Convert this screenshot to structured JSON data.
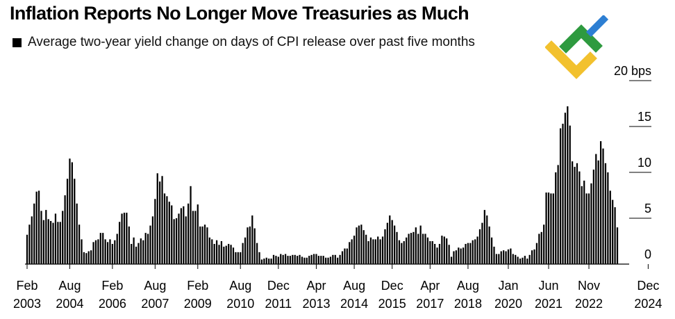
{
  "title": "Inflation Reports No Longer Move Treasuries as Much",
  "legend": {
    "label": "Average two-year yield change on days of CPI release over past five months"
  },
  "logo": {
    "name": "brand-logo",
    "colors": {
      "green": "#2e9a3f",
      "blue": "#2d7fd3",
      "yellow": "#f2c12e"
    }
  },
  "chart_data": {
    "type": "bar",
    "title": "Inflation Reports No Longer Move Treasuries as Much",
    "series": [
      {
        "name": "Average two-year yield change on days of CPI release over past five months",
        "color": "#000000"
      }
    ],
    "ylabel": "bps",
    "ylim": [
      0,
      20
    ],
    "y_ticks": [
      {
        "value": 0,
        "label": "0"
      },
      {
        "value": 5,
        "label": "5"
      },
      {
        "value": 10,
        "label": "10"
      },
      {
        "value": 15,
        "label": "15"
      },
      {
        "value": 20,
        "label": "20 bps"
      }
    ],
    "x_ticks": [
      {
        "index": 0,
        "month": "Feb",
        "year": "2003"
      },
      {
        "index": 18,
        "month": "Aug",
        "year": "2004"
      },
      {
        "index": 36,
        "month": "Feb",
        "year": "2006"
      },
      {
        "index": 54,
        "month": "Aug",
        "year": "2007"
      },
      {
        "index": 72,
        "month": "Feb",
        "year": "2009"
      },
      {
        "index": 90,
        "month": "Aug",
        "year": "2010"
      },
      {
        "index": 106,
        "month": "Dec",
        "year": "2011"
      },
      {
        "index": 122,
        "month": "Apr",
        "year": "2013"
      },
      {
        "index": 138,
        "month": "Aug",
        "year": "2014"
      },
      {
        "index": 154,
        "month": "Dec",
        "year": "2015"
      },
      {
        "index": 170,
        "month": "Apr",
        "year": "2017"
      },
      {
        "index": 186,
        "month": "Aug",
        "year": "2018"
      },
      {
        "index": 203,
        "month": "Jan",
        "year": "2020"
      },
      {
        "index": 220,
        "month": "Jun",
        "year": "2021"
      },
      {
        "index": 237,
        "month": "Nov",
        "year": "2022"
      },
      {
        "index": 262,
        "month": "Dec",
        "year": "2024"
      }
    ],
    "values": [
      3.2,
      4.3,
      5.2,
      6.6,
      7.9,
      8.0,
      5.8,
      4.8,
      5.9,
      4.9,
      4.7,
      4.5,
      5.5,
      4.6,
      4.6,
      5.8,
      7.5,
      9.3,
      11.5,
      11.1,
      9.3,
      6.6,
      4.3,
      2.7,
      1.3,
      1.2,
      1.4,
      1.5,
      2.4,
      2.6,
      2.7,
      3.4,
      3.4,
      2.7,
      2.4,
      2.7,
      2.2,
      2.6,
      3.3,
      4.6,
      5.5,
      5.6,
      5.6,
      4.1,
      2.2,
      2.9,
      1.9,
      2.3,
      2.8,
      2.6,
      3.4,
      3.3,
      4.2,
      5.2,
      7.1,
      9.9,
      9.0,
      9.6,
      7.7,
      7.4,
      6.8,
      6.4,
      4.9,
      5.0,
      5.5,
      6.1,
      6.3,
      5.2,
      6.6,
      8.5,
      5.8,
      5.8,
      6.5,
      4.1,
      4.1,
      4.3,
      4.0,
      2.9,
      2.7,
      2.2,
      2.6,
      2.1,
      2.5,
      1.9,
      2.0,
      2.2,
      2.1,
      1.8,
      1.3,
      1.3,
      1.3,
      2.3,
      2.9,
      4.0,
      4.1,
      5.3,
      3.9,
      2.3,
      1.3,
      0.5,
      0.6,
      0.7,
      0.6,
      0.6,
      1.0,
      0.9,
      0.8,
      1.1,
      1.0,
      1.1,
      0.9,
      0.9,
      1.0,
      1.0,
      0.9,
      1.0,
      0.8,
      0.7,
      0.7,
      0.9,
      1.0,
      1.1,
      1.1,
      0.9,
      0.9,
      0.9,
      0.7,
      0.7,
      0.8,
      1.0,
      1.0,
      0.7,
      1.0,
      1.4,
      1.7,
      1.7,
      2.4,
      2.7,
      3.1,
      4.0,
      4.2,
      4.3,
      3.7,
      3.2,
      2.5,
      2.9,
      2.7,
      2.7,
      3.0,
      2.7,
      3.0,
      3.8,
      4.5,
      5.3,
      4.8,
      4.2,
      3.5,
      2.6,
      2.3,
      2.5,
      2.9,
      3.3,
      3.4,
      3.5,
      4.0,
      3.3,
      4.2,
      3.3,
      3.3,
      2.9,
      2.5,
      2.5,
      2.2,
      1.8,
      2.2,
      3.1,
      3.0,
      2.8,
      2.1,
      0.8,
      1.4,
      1.5,
      1.8,
      1.7,
      1.8,
      2.2,
      2.3,
      2.3,
      2.6,
      2.7,
      3.0,
      3.8,
      4.5,
      5.9,
      5.3,
      4.1,
      2.9,
      1.9,
      1.1,
      1.1,
      1.4,
      1.5,
      1.4,
      1.6,
      1.7,
      1.1,
      1.0,
      0.8,
      0.6,
      0.7,
      0.9,
      0.6,
      1.0,
      1.5,
      1.6,
      2.3,
      3.3,
      3.5,
      4.3,
      7.8,
      7.8,
      7.7,
      7.7,
      10.0,
      10.8,
      14.8,
      15.3,
      16.5,
      17.2,
      15.1,
      11.2,
      10.6,
      11.0,
      10.1,
      8.5,
      9.1,
      7.7,
      7.7,
      8.8,
      10.3,
      12.0,
      11.3,
      13.4,
      12.6,
      11.0,
      10.0,
      8.0,
      7.0,
      6.2,
      4.0
    ]
  }
}
